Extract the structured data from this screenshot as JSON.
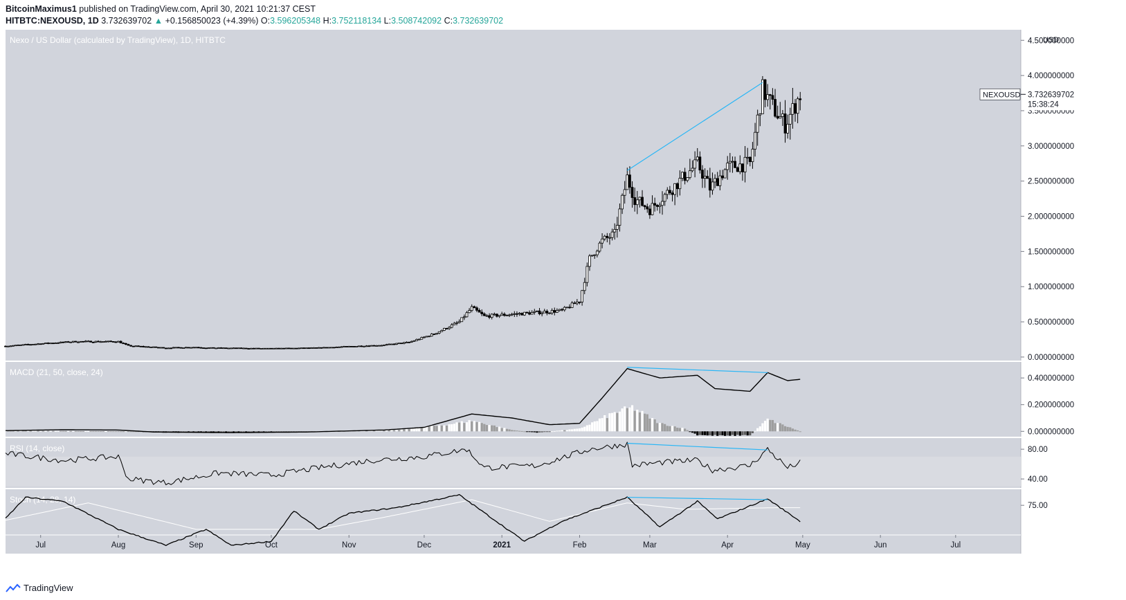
{
  "header": {
    "author": "BitcoinMaximus1",
    "published_text": "published on TradingView.com, April 30, 2021 10:21:37 CEST",
    "symbol": "HITBTC:NEXOUSD, 1D",
    "last": "3.732639702",
    "change": "+0.156850023 (+4.39%)",
    "open_label": "O:",
    "open": "3.596205348",
    "high_label": "H:",
    "high": "3.752118134",
    "low_label": "L:",
    "low": "3.508742092",
    "close_label": "C:",
    "close": "3.732639702"
  },
  "colors": {
    "pane_bg": "#d1d4dc",
    "rsi_band": "#d9dbe1",
    "text": "#131722",
    "trendline": "#29b6f6",
    "candle": "#000000",
    "stoch_d": "#ffffff"
  },
  "footer": {
    "brand": "TradingView"
  },
  "chart_data": {
    "type": "candlestick",
    "title": "Nexo / US Dollar (calculated by TradingView), 1D, HITBTC",
    "currency": "USD",
    "price_label": {
      "symbol": "NEXOUSD",
      "value": "3.732639702",
      "countdown": "15:38:24"
    },
    "x_labels": [
      "Jul",
      "Aug",
      "Sep",
      "Oct",
      "Nov",
      "Dec",
      "2021",
      "Feb",
      "Mar",
      "Apr",
      "May",
      "Jun",
      "Jul"
    ],
    "price_axis": {
      "ylim": [
        -0.05,
        4.65
      ],
      "ticks": [
        4.5,
        4.0,
        3.5,
        3.0,
        2.5,
        2.0,
        1.5,
        1.0,
        0.5,
        0.0
      ],
      "tick_labels": [
        "4.500000000",
        "4.000000000",
        "3.500000000",
        "3.000000000",
        "2.500000000",
        "2.000000000",
        "1.500000000",
        "1.000000000",
        "0.500000000",
        "0.000000000"
      ]
    },
    "price_anchors": [
      [
        "2020-06-15",
        0.15
      ],
      [
        "2020-07-01",
        0.19
      ],
      [
        "2020-07-15",
        0.22
      ],
      [
        "2020-08-01",
        0.22
      ],
      [
        "2020-08-05",
        0.16
      ],
      [
        "2020-08-20",
        0.13
      ],
      [
        "2020-09-01",
        0.14
      ],
      [
        "2020-09-05",
        0.13
      ],
      [
        "2020-10-01",
        0.12
      ],
      [
        "2020-10-20",
        0.13
      ],
      [
        "2020-11-01",
        0.15
      ],
      [
        "2020-11-15",
        0.17
      ],
      [
        "2020-11-25",
        0.21
      ],
      [
        "2020-12-05",
        0.33
      ],
      [
        "2020-12-15",
        0.5
      ],
      [
        "2020-12-20",
        0.7
      ],
      [
        "2020-12-25",
        0.58
      ],
      [
        "2021-01-10",
        0.62
      ],
      [
        "2021-01-25",
        0.66
      ],
      [
        "2021-02-01",
        0.8
      ],
      [
        "2021-02-05",
        1.4
      ],
      [
        "2021-02-10",
        1.65
      ],
      [
        "2021-02-15",
        1.75
      ],
      [
        "2021-02-20",
        2.55
      ],
      [
        "2021-02-23",
        2.25
      ],
      [
        "2021-03-01",
        2.1
      ],
      [
        "2021-03-10",
        2.4
      ],
      [
        "2021-03-20",
        2.75
      ],
      [
        "2021-03-25",
        2.4
      ],
      [
        "2021-04-01",
        2.7
      ],
      [
        "2021-04-10",
        2.75
      ],
      [
        "2021-04-15",
        3.8
      ],
      [
        "2021-04-20",
        3.5
      ],
      [
        "2021-04-24",
        3.3
      ],
      [
        "2021-04-30",
        3.73
      ]
    ],
    "price_trendline": [
      [
        "2021-02-20",
        2.65
      ],
      [
        "2021-04-15",
        3.9
      ]
    ],
    "indicators": [
      {
        "name": "MACD",
        "label": "MACD (21, 50, close, 24)",
        "ylim": [
          -0.04,
          0.52
        ],
        "ticks": [
          0.4,
          0.2,
          0.0
        ],
        "tick_labels": [
          "0.400000000",
          "0.200000000",
          "0.000000000"
        ],
        "macd_anchors": [
          [
            "2020-06-15",
            0.005
          ],
          [
            "2020-07-10",
            0.012
          ],
          [
            "2020-08-01",
            0.01
          ],
          [
            "2020-08-15",
            -0.005
          ],
          [
            "2020-09-15",
            -0.01
          ],
          [
            "2020-10-15",
            -0.005
          ],
          [
            "2020-11-15",
            0.01
          ],
          [
            "2020-12-01",
            0.03
          ],
          [
            "2020-12-20",
            0.13
          ],
          [
            "2021-01-05",
            0.1
          ],
          [
            "2021-01-20",
            0.05
          ],
          [
            "2021-02-01",
            0.06
          ],
          [
            "2021-02-10",
            0.25
          ],
          [
            "2021-02-20",
            0.47
          ],
          [
            "2021-03-05",
            0.4
          ],
          [
            "2021-03-20",
            0.42
          ],
          [
            "2021-03-27",
            0.32
          ],
          [
            "2021-04-10",
            0.3
          ],
          [
            "2021-04-17",
            0.44
          ],
          [
            "2021-04-25",
            0.38
          ],
          [
            "2021-04-30",
            0.39
          ]
        ],
        "hist_anchors": [
          [
            "2020-06-15",
            0.005
          ],
          [
            "2020-08-10",
            0.0
          ],
          [
            "2020-08-20",
            -0.01
          ],
          [
            "2020-09-30",
            -0.005
          ],
          [
            "2020-11-20",
            0.01
          ],
          [
            "2020-12-10",
            0.05
          ],
          [
            "2020-12-20",
            0.08
          ],
          [
            "2021-01-05",
            0.01
          ],
          [
            "2021-01-15",
            -0.01
          ],
          [
            "2021-02-01",
            0.02
          ],
          [
            "2021-02-15",
            0.14
          ],
          [
            "2021-02-22",
            0.18
          ],
          [
            "2021-03-05",
            0.06
          ],
          [
            "2021-03-15",
            0.02
          ],
          [
            "2021-03-20",
            -0.03
          ],
          [
            "2021-04-10",
            -0.03
          ],
          [
            "2021-04-17",
            0.09
          ],
          [
            "2021-04-30",
            0.0
          ]
        ],
        "trendline": [
          [
            "2021-02-20",
            0.48
          ],
          [
            "2021-04-17",
            0.44
          ]
        ]
      },
      {
        "name": "RSI",
        "label": "RSI (14, close)",
        "ylim": [
          28,
          95
        ],
        "ticks": [
          80,
          40
        ],
        "tick_labels": [
          "80.00",
          "40.00"
        ],
        "band": [
          30,
          70
        ],
        "anchors": [
          [
            "2020-06-15",
            75
          ],
          [
            "2020-07-10",
            65
          ],
          [
            "2020-08-01",
            70
          ],
          [
            "2020-08-05",
            40
          ],
          [
            "2020-08-20",
            35
          ],
          [
            "2020-09-10",
            48
          ],
          [
            "2020-10-01",
            45
          ],
          [
            "2020-10-20",
            55
          ],
          [
            "2020-11-10",
            65
          ],
          [
            "2020-12-01",
            70
          ],
          [
            "2020-12-18",
            80
          ],
          [
            "2020-12-25",
            55
          ],
          [
            "2021-01-15",
            58
          ],
          [
            "2021-02-05",
            80
          ],
          [
            "2021-02-20",
            87
          ],
          [
            "2021-02-22",
            58
          ],
          [
            "2021-03-05",
            62
          ],
          [
            "2021-03-20",
            65
          ],
          [
            "2021-03-26",
            52
          ],
          [
            "2021-04-10",
            58
          ],
          [
            "2021-04-17",
            80
          ],
          [
            "2021-04-25",
            55
          ],
          [
            "2021-04-30",
            62
          ]
        ],
        "trendline": [
          [
            "2021-02-20",
            88
          ],
          [
            "2021-04-17",
            79
          ]
        ]
      },
      {
        "name": "Stoch",
        "label": "Stoch (14, 28, 14)",
        "ylim": [
          38,
          95
        ],
        "ticks": [
          75
        ],
        "tick_labels": [
          "75.00"
        ],
        "k_anchors": [
          [
            "2020-06-15",
            52
          ],
          [
            "2020-06-25",
            85
          ],
          [
            "2020-07-10",
            80
          ],
          [
            "2020-08-01",
            45
          ],
          [
            "2020-08-20",
            25
          ],
          [
            "2020-09-05",
            45
          ],
          [
            "2020-09-15",
            25
          ],
          [
            "2020-10-01",
            30
          ],
          [
            "2020-10-10",
            68
          ],
          [
            "2020-10-20",
            45
          ],
          [
            "2020-11-01",
            65
          ],
          [
            "2020-11-20",
            72
          ],
          [
            "2020-12-15",
            88
          ],
          [
            "2021-01-10",
            30
          ],
          [
            "2021-01-25",
            55
          ],
          [
            "2021-02-20",
            85
          ],
          [
            "2021-03-05",
            48
          ],
          [
            "2021-03-20",
            80
          ],
          [
            "2021-03-28",
            58
          ],
          [
            "2021-04-17",
            83
          ],
          [
            "2021-04-30",
            55
          ]
        ],
        "d_anchors": [
          [
            "2020-06-15",
            55
          ],
          [
            "2020-07-20",
            78
          ],
          [
            "2020-09-01",
            45
          ],
          [
            "2020-10-20",
            45
          ],
          [
            "2020-11-15",
            60
          ],
          [
            "2020-12-20",
            82
          ],
          [
            "2021-01-20",
            55
          ],
          [
            "2021-02-20",
            78
          ],
          [
            "2021-03-15",
            70
          ],
          [
            "2021-04-20",
            72
          ],
          [
            "2021-04-30",
            72
          ]
        ],
        "trendline": [
          [
            "2021-02-20",
            85
          ],
          [
            "2021-04-17",
            82
          ]
        ]
      }
    ]
  }
}
